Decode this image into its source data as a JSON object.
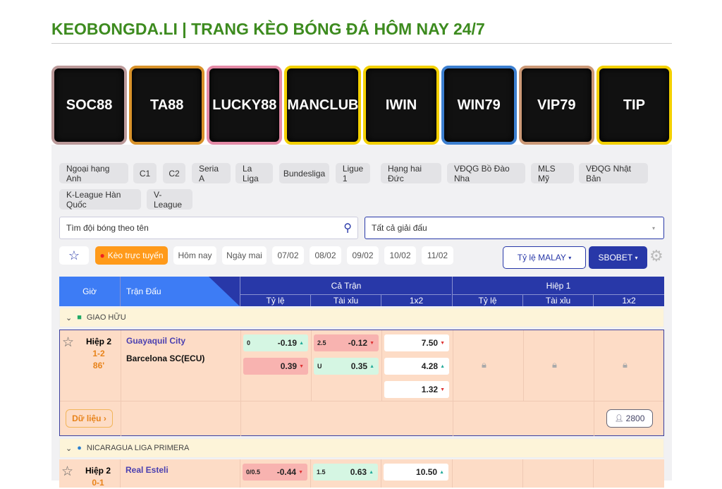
{
  "title": "KEOBONGDA.LI | TRANG KÈO BÓNG ĐÁ HÔM NAY 24/7",
  "banners": [
    {
      "label": "SOC88",
      "color": "#b99"
    },
    {
      "label": "TA88",
      "color": "#d8922a"
    },
    {
      "label": "LUCKY88",
      "color": "#e48aa6"
    },
    {
      "label": "MANCLUB",
      "color": "#f3d000"
    },
    {
      "label": "IWIN",
      "color": "#f3d000"
    },
    {
      "label": "WIN79",
      "color": "#3c7fd0"
    },
    {
      "label": "VIP79",
      "color": "#c97"
    },
    {
      "label": "TIP",
      "color": "#f3d000"
    }
  ],
  "leagues": [
    "Ngoại hạng Anh",
    "C1",
    "C2",
    "Seria A",
    "La Liga",
    "Bundesliga",
    "Ligue 1",
    "Hạng hai Đức",
    "VĐQG Bồ Đào Nha",
    "MLS Mỹ",
    "VĐQG Nhật Bản",
    "K-League Hàn Quốc",
    "V-League"
  ],
  "search": {
    "placeholder": "Tìm đội bóng theo tên",
    "league_select": "Tất cả giải đấu"
  },
  "dates": {
    "live": "Kèo trực tuyến",
    "items": [
      "Hôm nay",
      "Ngày mai",
      "07/02",
      "08/02",
      "09/02",
      "10/02",
      "11/02"
    ]
  },
  "odds_type": "Tỷ lệ MALAY",
  "bookmaker": "SBOBET",
  "table": {
    "col_time": "Giờ",
    "col_match": "Trận Đấu",
    "full": "Cả Trận",
    "half": "Hiệp 1",
    "sub": [
      "Tỷ lệ",
      "Tài xỉu",
      "1x2",
      "Tỷ lệ",
      "Tài xỉu",
      "1x2"
    ]
  },
  "groups": [
    {
      "name": "GIAO HỮU",
      "match": {
        "period": "Hiệp 2",
        "score": "1-2",
        "minute": "86",
        "home": "Guayaquil City",
        "away": "Barcelona SC(ECU)",
        "hdp_line": "0",
        "hdp_home": "-0.19",
        "hdp_away": "0.39",
        "ou_line": "2.5",
        "ou_over": "-0.12",
        "ou_under_label": "U",
        "ou_under": "0.35",
        "x1": "7.50",
        "xx": "4.28",
        "x2": "1.32",
        "data_btn": "Dữ liệu",
        "viewers": "2800"
      }
    },
    {
      "name": "NICARAGUA LIGA PRIMERA",
      "match": {
        "period": "Hiệp 2",
        "score": "0-1",
        "home": "Real Esteli",
        "hdp_line": "0/0.5",
        "hdp_home": "-0.44",
        "ou_line": "1.5",
        "ou_over": "0.63",
        "x1": "10.50"
      }
    }
  ],
  "colors": {
    "brand": "#3d8b1f",
    "header": "#2838a8",
    "live": "#ff9a1a",
    "row": "#fddcc6"
  }
}
